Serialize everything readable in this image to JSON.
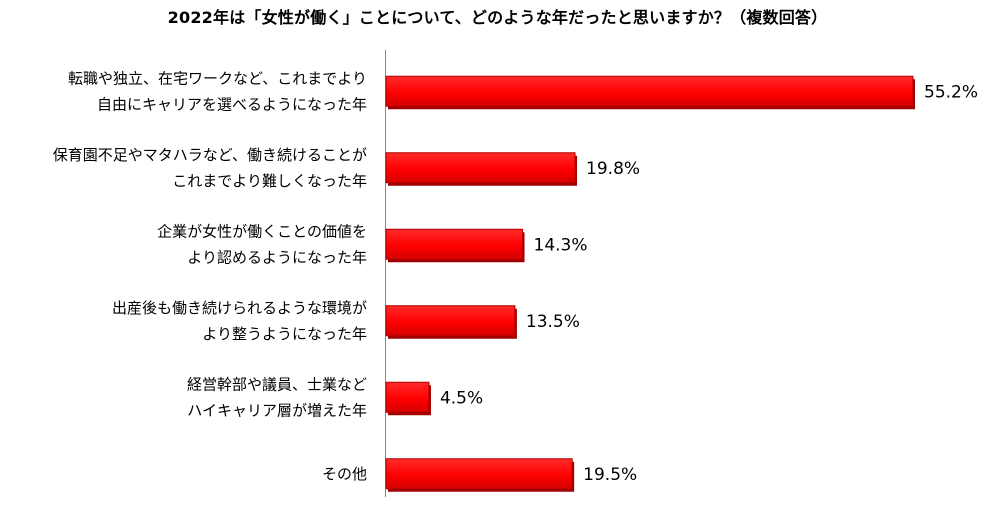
{
  "chart_data": {
    "type": "bar",
    "orientation": "horizontal",
    "title": "2022年は「女性が働く」ことについて、どのような年だったと思いますか？（複数回答）",
    "unit": "%",
    "xlim": [
      0,
      55.2
    ],
    "grid": false,
    "legend": "none",
    "bar_color": "#ff0000",
    "bar_shadow_color": "#a00000",
    "categories": [
      [
        "転職や独立、在宅ワークなど、これまでより",
        "自由にキャリアを選べるようになった年"
      ],
      [
        "保育園不足やマタハラなど、働き続けることが",
        "これまでより難しくなった年"
      ],
      [
        "企業が女性が働くことの価値を",
        "より認めるようになった年"
      ],
      [
        "出産後も働き続けられるような環境が",
        "より整うようになった年"
      ],
      [
        "経営幹部や議員、士業など",
        "ハイキャリア層が増えた年"
      ],
      [
        "その他"
      ]
    ],
    "values": [
      55.2,
      19.8,
      14.3,
      13.5,
      4.5,
      19.5
    ],
    "value_labels": [
      "55.2%",
      "19.8%",
      "14.3%",
      "13.5%",
      "4.5%",
      "19.5%"
    ]
  }
}
